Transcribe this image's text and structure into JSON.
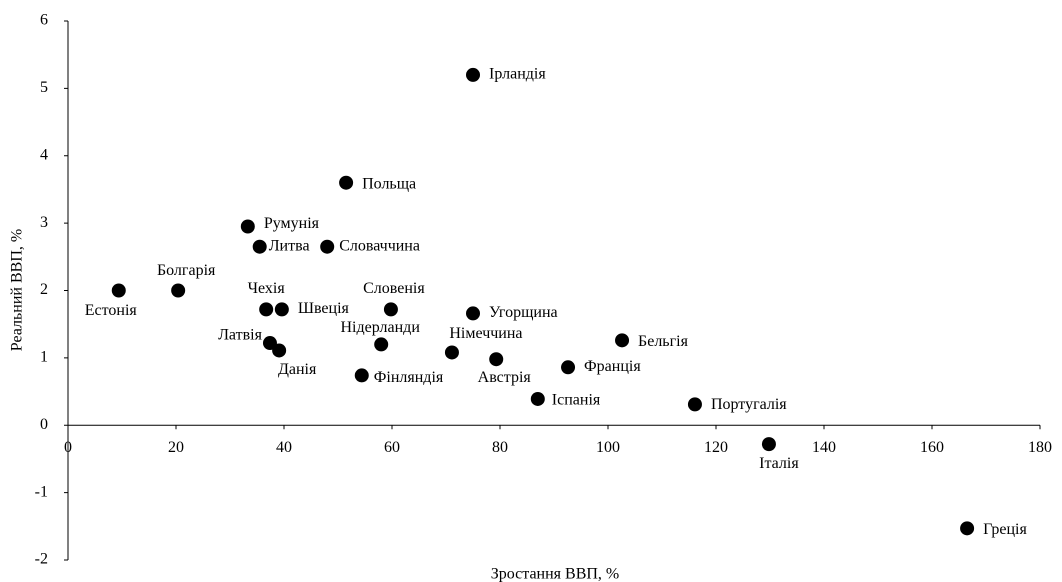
{
  "chart_data": {
    "type": "scatter",
    "x_label": "Зростання ВВП, %",
    "y_label": "Реальний ВВП, %",
    "color": "#000000",
    "point_labels": [
      "Ірландія",
      "Польща",
      "Румунія",
      "Литва",
      "Словаччина",
      "Естонія",
      "Болгарія",
      "Чехія",
      "Швеція",
      "Словенія",
      "Угорщина",
      "Латвія",
      "Данія",
      "Нідерланди",
      "Німеччина",
      "Австрія",
      "Фінляндія",
      "Бельгія",
      "Франція",
      "Іспанія",
      "Португалія",
      "Італія",
      "Греція"
    ],
    "x": [
      75,
      51.5,
      33.3,
      35.5,
      48,
      9.4,
      20.4,
      36.7,
      39.6,
      59.8,
      75,
      37.4,
      39.1,
      58,
      71.1,
      79.3,
      54.4,
      102.6,
      92.6,
      87,
      116.1,
      129.8,
      166.5
    ],
    "values": [
      5.2,
      3.6,
      2.95,
      2.65,
      2.65,
      2,
      2,
      1.72,
      1.72,
      1.72,
      1.66,
      1.22,
      1.11,
      1.2,
      1.08,
      0.98,
      0.74,
      1.26,
      0.86,
      0.39,
      0.31,
      -0.28,
      -1.53
    ],
    "xlim": [
      0,
      180
    ],
    "xticks": [
      0,
      20,
      40,
      60,
      80,
      100,
      120,
      140,
      160,
      180
    ],
    "ylim": [
      -2,
      6
    ],
    "yticks": [
      -2,
      -1,
      0,
      1,
      2,
      3,
      4,
      5,
      6
    ]
  }
}
